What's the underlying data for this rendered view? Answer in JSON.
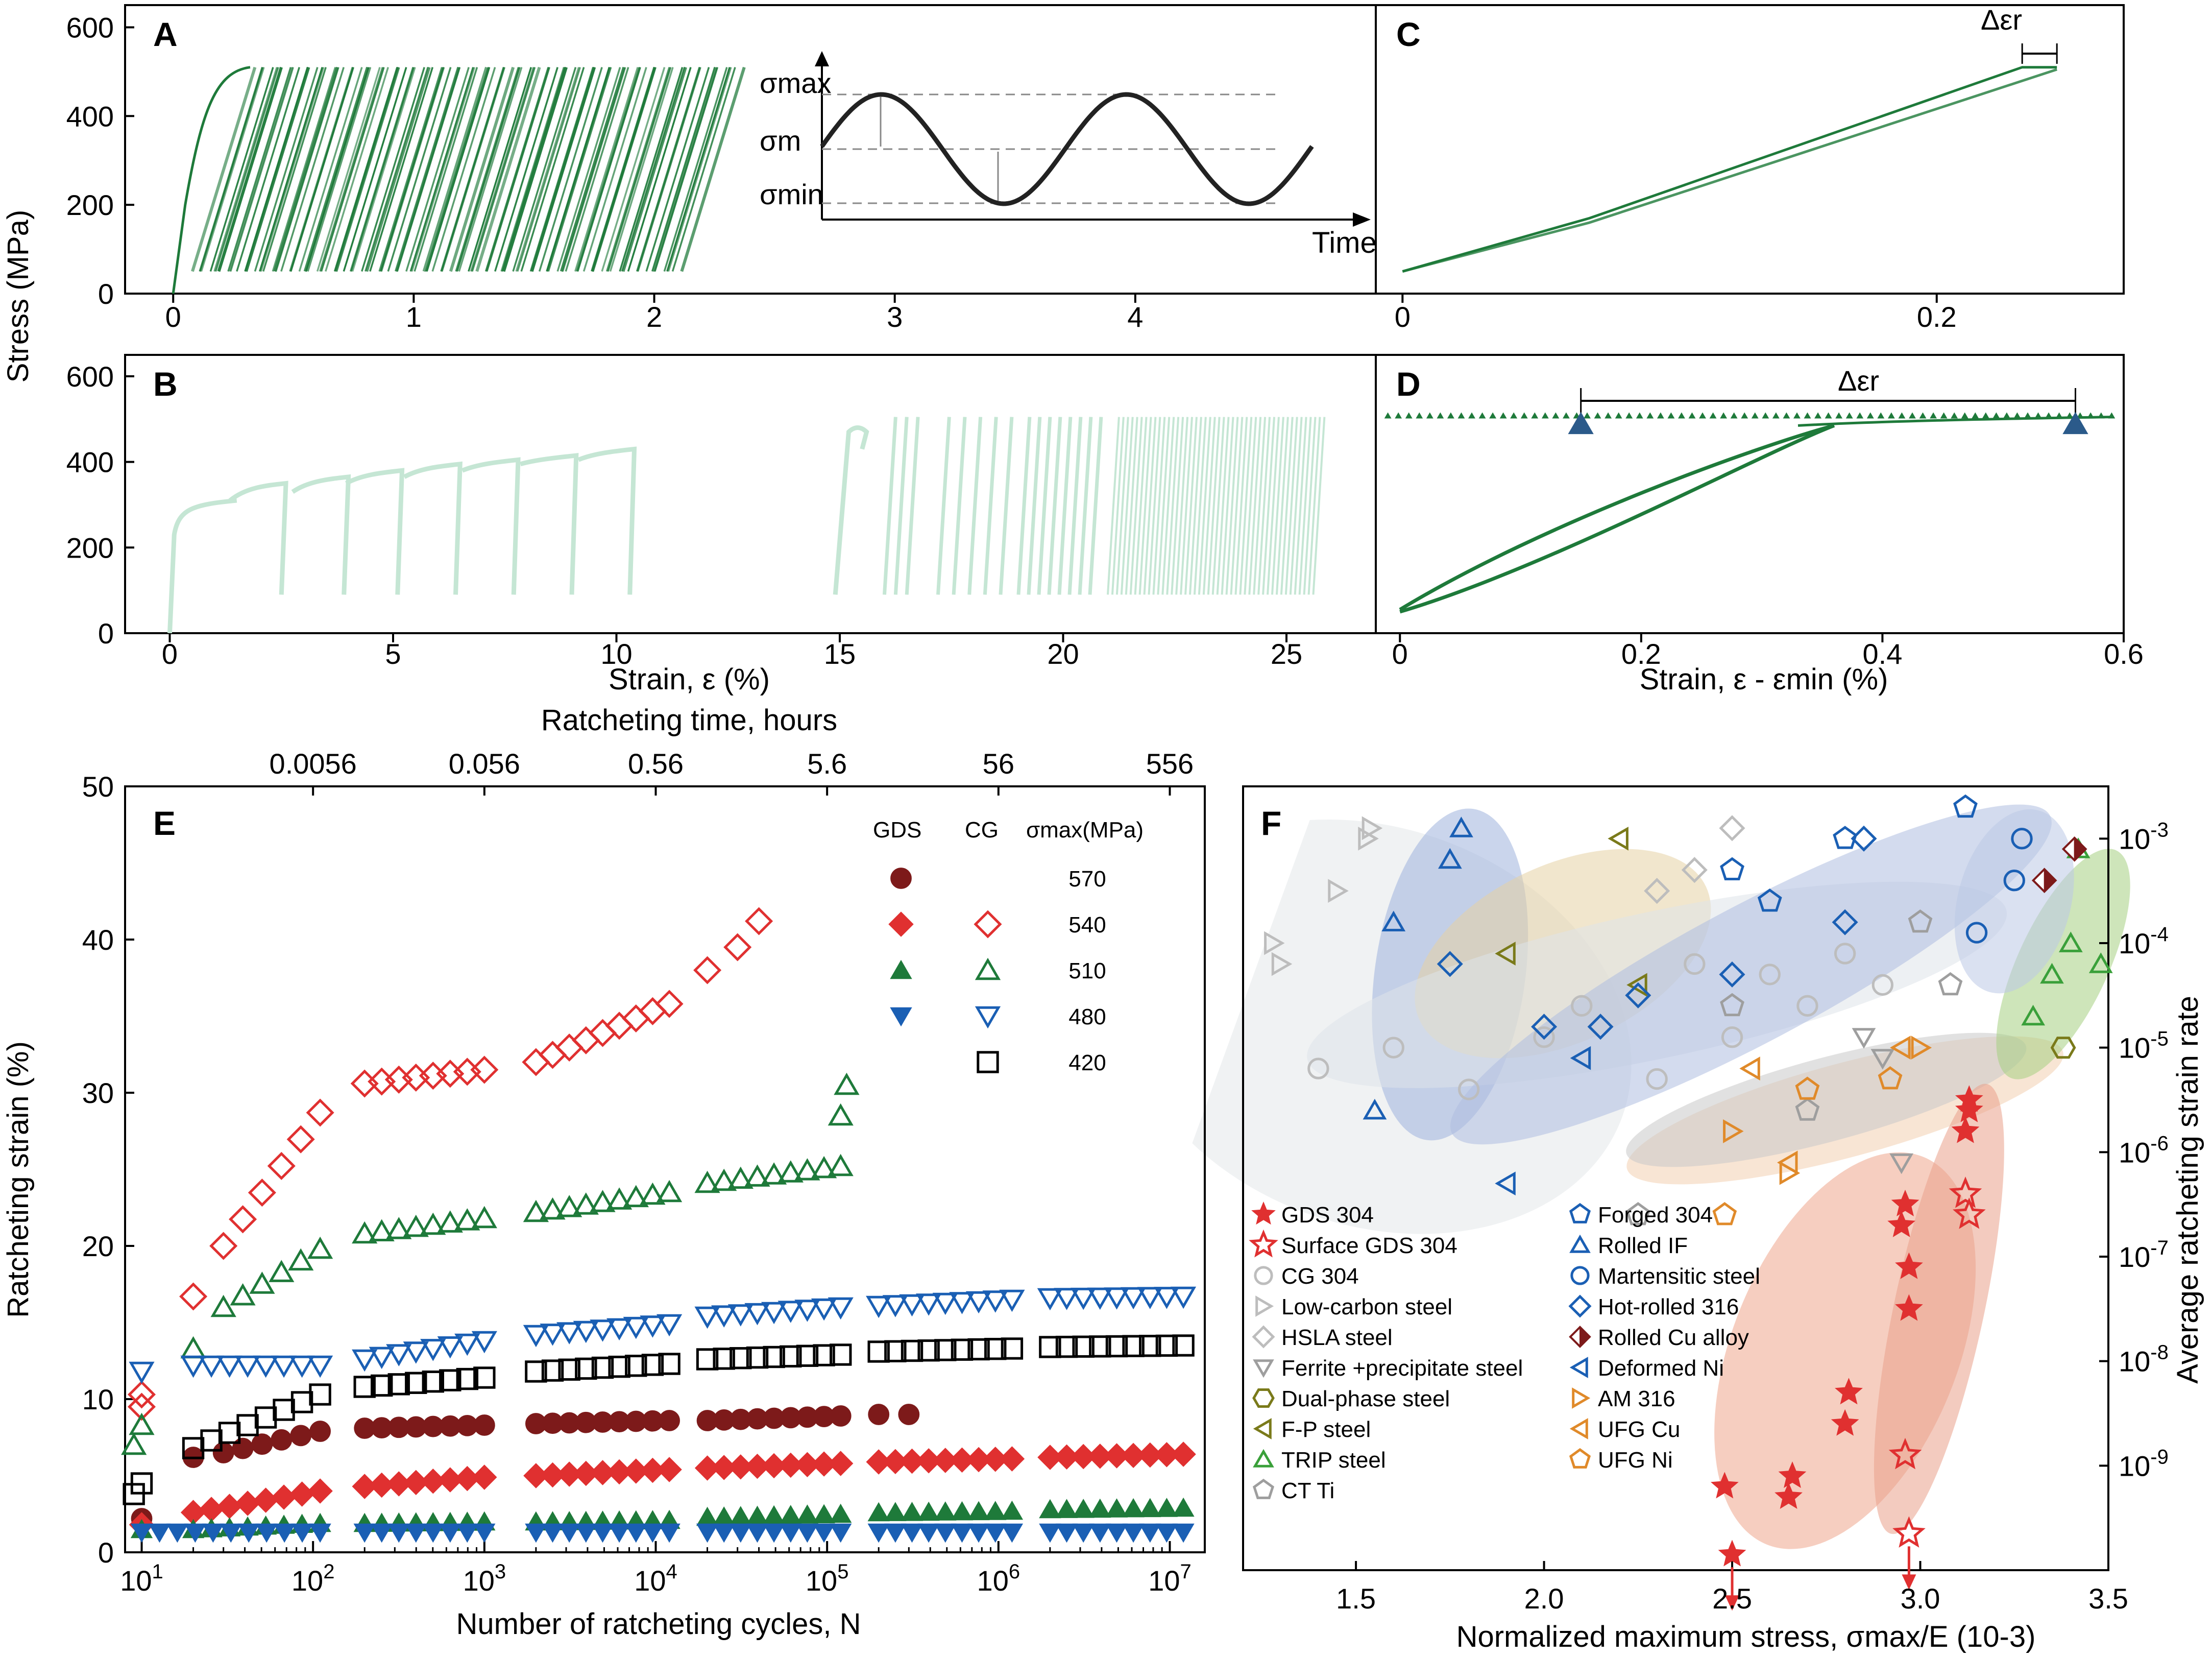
{
  "colors": {
    "green": "#1e7a3a",
    "pale_green": "#c5e6d4",
    "red": "#e03030",
    "dark_red": "#7d1a1a",
    "blue": "#1a5fb4",
    "black": "#000000",
    "gray": "#b5b5b5",
    "steel_blue": "#2b5a8a"
  },
  "panels": {
    "A": {
      "letter": "A"
    },
    "B": {
      "letter": "B"
    },
    "C": {
      "letter": "C"
    },
    "D": {
      "letter": "D"
    },
    "E": {
      "letter": "E"
    },
    "F": {
      "letter": "F"
    }
  },
  "labels": {
    "stress_axis": "Stress (MPa)",
    "strain_axis": "Strain, ε (%)",
    "strain_min_axis": "Strain, ε - εmin (%)",
    "time_label": "Time",
    "sigma_max": "σmax",
    "sigma_m": "σm",
    "sigma_min": "σmin",
    "delta_er": "Δεr",
    "ratch_time_axis": "Ratcheting time, hours",
    "ratch_strain_axis": "Ratcheting strain (%)",
    "cycles_axis": "Number of ratcheting cycles, N",
    "norm_stress_axis": "Normalized maximum stress, σmax/E (10-3)",
    "avg_rate_axis": "Average ratcheting strain rate",
    "legend_gds": "GDS",
    "legend_cg": "CG",
    "legend_smax": "σmax(MPa)"
  },
  "chart_data": [
    {
      "panel": "A",
      "type": "line",
      "xlabel": "",
      "ylabel": "Stress (MPa)",
      "xlim": [
        -0.2,
        5.0
      ],
      "ylim": [
        0,
        650
      ],
      "xticks": [
        0,
        1,
        2,
        3,
        4
      ],
      "yticks": [
        0,
        200,
        400,
        600
      ],
      "cycle_band": {
        "stress_min": 50,
        "stress_max": 510,
        "strain_start": 0.0,
        "strain_end": 2.35
      },
      "inset": {
        "type": "line",
        "description_labels": [
          "σmax",
          "σm",
          "σmin",
          "Time"
        ]
      }
    },
    {
      "panel": "B",
      "type": "line",
      "xlabel": "Strain, ε (%)",
      "ylabel": "",
      "xlim": [
        -1,
        27
      ],
      "ylim": [
        0,
        650
      ],
      "xticks": [
        0,
        5,
        10,
        15,
        20,
        25
      ],
      "yticks": [
        0,
        200,
        400,
        600
      ],
      "plateau_levels": [
        300,
        320,
        340,
        355,
        370,
        385,
        395,
        405,
        420,
        430
      ]
    },
    {
      "panel": "C",
      "type": "line",
      "xlabel": "",
      "ylabel": "",
      "xlim": [
        -0.01,
        0.27
      ],
      "ylim": [
        0,
        650
      ],
      "xticks": [
        0,
        0.2
      ],
      "annotation": "Δεr"
    },
    {
      "panel": "D",
      "type": "line",
      "xlabel": "Strain, ε - εmin (%)",
      "ylabel": "",
      "xlim": [
        -0.02,
        0.6
      ],
      "ylim": [
        0,
        650
      ],
      "xticks": [
        0,
        0.2,
        0.4,
        0.6
      ],
      "annotation": "Δεr",
      "ratchet_range": [
        0.15,
        0.56
      ]
    },
    {
      "panel": "E",
      "type": "scatter",
      "xlabel": "Number of ratcheting cycles, N",
      "ylabel": "Ratcheting strain (%)",
      "xscale": "log",
      "xlim": [
        8,
        16000000
      ],
      "ylim": [
        0,
        50
      ],
      "xtick_labels": [
        "10^1",
        "10^2",
        "10^3",
        "10^4",
        "10^5",
        "10^6",
        "10^7"
      ],
      "yticks": [
        0,
        10,
        20,
        30,
        40,
        50
      ],
      "top_axis": {
        "label": "Ratcheting time, hours",
        "ticks": [
          "0.0056",
          "0.056",
          "0.56",
          "5.6",
          "56",
          "556"
        ]
      },
      "series": [
        {
          "name": "570",
          "group": "GDS",
          "marker": "circle",
          "color": "#7d1a1a",
          "filled": true,
          "segments": [
            [
              30,
              6.5,
              110,
              7.9
            ],
            [
              200,
              8.1,
              1000,
              8.3
            ],
            [
              2000,
              8.4,
              12000,
              8.6
            ],
            [
              20000,
              8.6,
              120000,
              8.9
            ]
          ],
          "x": [
            10,
            20,
            200000,
            300000
          ],
          "y": [
            2.2,
            6.2,
            9.0,
            9.0
          ]
        },
        {
          "name": "540",
          "group": "GDS",
          "marker": "diamond",
          "color": "#e03030",
          "filled": true,
          "segments": [
            [
              20,
              2.6,
              110,
              4.0
            ],
            [
              200,
              4.3,
              1000,
              4.9
            ],
            [
              2000,
              5.0,
              12000,
              5.4
            ],
            [
              20000,
              5.5,
              120000,
              5.8
            ],
            [
              200000,
              5.9,
              1200000,
              6.1
            ],
            [
              2000000,
              6.2,
              12000000,
              6.4
            ]
          ],
          "x": [
            10
          ],
          "y": [
            1.8
          ]
        },
        {
          "name": "510",
          "group": "GDS",
          "marker": "triangle-up",
          "color": "#1e7a3a",
          "filled": true,
          "segments": [
            [
              20,
              1.5,
              110,
              1.9
            ],
            [
              200,
              1.9,
              1000,
              2.0
            ],
            [
              2000,
              2.0,
              12000,
              2.1
            ],
            [
              20000,
              2.3,
              120000,
              2.5
            ],
            [
              200000,
              2.6,
              1200000,
              2.7
            ],
            [
              2000000,
              2.8,
              12000000,
              2.9
            ]
          ],
          "x": [
            10
          ],
          "y": [
            1.5
          ]
        },
        {
          "name": "480",
          "group": "GDS",
          "marker": "triangle-down",
          "color": "#1a5fb4",
          "filled": true,
          "segments": [
            [
              10,
              1.3,
              110,
              1.3
            ],
            [
              200,
              1.3,
              1000,
              1.3
            ],
            [
              2000,
              1.3,
              12000,
              1.3
            ],
            [
              20000,
              1.3,
              120000,
              1.3
            ],
            [
              200000,
              1.3,
              1200000,
              1.3
            ],
            [
              2000000,
              1.3,
              12000000,
              1.3
            ]
          ],
          "x": [],
          "y": []
        },
        {
          "name": "540",
          "group": "CG",
          "marker": "diamond",
          "color": "#e03030",
          "filled": false,
          "segments": [
            [
              30,
              20,
              110,
              28.7
            ],
            [
              200,
              30.6,
              1000,
              31.5
            ],
            [
              2000,
              32,
              12000,
              35.8
            ]
          ],
          "x": [
            10,
            10,
            20,
            20000,
            30000,
            40000
          ],
          "y": [
            9.5,
            10.3,
            16.7,
            38,
            39.5,
            41.2
          ]
        },
        {
          "name": "510",
          "group": "CG",
          "marker": "triangle-up",
          "color": "#1e7a3a",
          "filled": false,
          "segments": [
            [
              30,
              16,
              110,
              19.8
            ],
            [
              200,
              20.8,
              1000,
              21.8
            ],
            [
              2000,
              22.2,
              12000,
              23.5
            ],
            [
              20000,
              24.1,
              120000,
              25.2
            ]
          ],
          "x": [
            9,
            10,
            20,
            120000,
            130000
          ],
          "y": [
            7.0,
            8.3,
            13.3,
            28.5,
            30.5
          ]
        },
        {
          "name": "480",
          "group": "CG",
          "marker": "triangle-down",
          "color": "#1a5fb4",
          "filled": false,
          "segments": [
            [
              20,
              12.2,
              110,
              12.2
            ],
            [
              200,
              12.6,
              1000,
              13.8
            ],
            [
              2000,
              14.2,
              12000,
              14.9
            ],
            [
              20000,
              15.4,
              120000,
              16.0
            ],
            [
              200000,
              16.1,
              1200000,
              16.5
            ],
            [
              2000000,
              16.6,
              12000000,
              16.7
            ]
          ],
          "x": [
            10
          ],
          "y": [
            11.8
          ]
        },
        {
          "name": "420",
          "group": "CG",
          "marker": "square",
          "color": "#000000",
          "filled": false,
          "segments": [
            [
              20,
              6.8,
              110,
              10.3
            ],
            [
              200,
              10.8,
              1000,
              11.4
            ],
            [
              2000,
              11.8,
              12000,
              12.3
            ],
            [
              20000,
              12.6,
              120000,
              12.9
            ],
            [
              200000,
              13.1,
              1200000,
              13.3
            ],
            [
              2000000,
              13.4,
              12000000,
              13.5
            ]
          ],
          "x": [
            9,
            10
          ],
          "y": [
            3.8,
            4.5
          ]
        }
      ],
      "legend": {
        "columns": [
          "GDS",
          "CG",
          "σmax(MPa)"
        ],
        "rows": [
          "570",
          "540",
          "510",
          "480",
          "420"
        ]
      }
    },
    {
      "panel": "F",
      "type": "scatter",
      "xlabel": "Normalized maximum stress, σmax/E (10-3)",
      "ylabel": "Average ratcheting strain rate",
      "xlim": [
        1.2,
        3.5
      ],
      "ylim_log10": [
        -10,
        -2.5
      ],
      "xticks": [
        1.5,
        2.0,
        2.5,
        3.0,
        3.5
      ],
      "ytick_labels": [
        "10^-9",
        "10^-8",
        "10^-7",
        "10^-6",
        "10^-5",
        "10^-4",
        "10^-3"
      ],
      "series": [
        {
          "name": "GDS 304",
          "marker": "star",
          "color": "#e03030",
          "filled": true,
          "x": [
            2.48,
            2.5,
            2.65,
            2.66,
            2.8,
            2.81,
            2.95,
            2.96,
            2.97,
            2.97,
            3.12,
            3.13,
            3.13
          ],
          "y": [
            -9.2,
            -9.85,
            -9.3,
            -9.1,
            -8.6,
            -8.3,
            -6.7,
            -6.5,
            -7.1,
            -7.5,
            -5.8,
            -5.6,
            -5.5
          ]
        },
        {
          "name": "Surface GDS 304",
          "marker": "star",
          "color": "#e03030",
          "filled": false,
          "x": [
            2.96,
            2.97,
            3.12,
            3.13
          ],
          "y": [
            -8.9,
            -9.65,
            -6.4,
            -6.6
          ]
        },
        {
          "name": "CG 304",
          "marker": "circle",
          "color": "#bdbdbd",
          "filled": false,
          "x": [
            1.4,
            1.6,
            1.8,
            2.0,
            2.1,
            2.3,
            2.4,
            2.5,
            2.6,
            2.7,
            2.8,
            2.9
          ],
          "y": [
            -5.2,
            -5.0,
            -5.4,
            -4.9,
            -4.6,
            -5.3,
            -4.2,
            -4.9,
            -4.3,
            -4.6,
            -4.1,
            -4.4
          ]
        },
        {
          "name": "Low-carbon steel",
          "marker": "triangle-right",
          "color": "#bdbdbd",
          "filled": false,
          "x": [
            1.28,
            1.3,
            1.45,
            1.53,
            1.54
          ],
          "y": [
            -4.0,
            -4.2,
            -3.5,
            -3.0,
            -2.9
          ]
        },
        {
          "name": "HSLA steel",
          "marker": "diamond",
          "color": "#bdbdbd",
          "filled": false,
          "x": [
            2.3,
            2.4,
            2.5
          ],
          "y": [
            -3.5,
            -3.3,
            -2.9
          ]
        },
        {
          "name": "Ferrite +precipitate steel",
          "marker": "triangle-down",
          "color": "#9e9e9e",
          "filled": false,
          "x": [
            2.85,
            2.9,
            2.95
          ],
          "y": [
            -4.9,
            -5.1,
            -6.1
          ]
        },
        {
          "name": "Dual-phase steel",
          "marker": "hexagon",
          "color": "#7a7a1a",
          "filled": false,
          "x": [
            3.38
          ],
          "y": [
            -5.0
          ]
        },
        {
          "name": "F-P steel",
          "marker": "triangle-left",
          "color": "#7a7a1a",
          "filled": false,
          "x": [
            1.9,
            2.2,
            2.25
          ],
          "y": [
            -4.1,
            -3.0,
            -4.4
          ]
        },
        {
          "name": "TRIP steel",
          "marker": "triangle-up",
          "color": "#3aa03a",
          "filled": false,
          "x": [
            3.3,
            3.35,
            3.4,
            3.42,
            3.48
          ],
          "y": [
            -4.7,
            -4.3,
            -4.0,
            -3.1,
            -4.2
          ]
        },
        {
          "name": "CT Ti",
          "marker": "pentagon",
          "color": "#9e9e9e",
          "filled": false,
          "x": [
            2.25,
            2.5,
            2.7,
            3.0,
            3.08
          ],
          "y": [
            -6.6,
            -4.6,
            -5.6,
            -3.8,
            -4.4
          ]
        },
        {
          "name": "Forged 304",
          "marker": "pentagon",
          "color": "#1a5fb4",
          "filled": false,
          "x": [
            2.5,
            2.6,
            2.8,
            3.12
          ],
          "y": [
            -3.3,
            -3.6,
            -3.0,
            -2.7
          ]
        },
        {
          "name": "Rolled IF",
          "marker": "triangle-up",
          "color": "#1a5fb4",
          "filled": false,
          "x": [
            1.55,
            1.6,
            1.75,
            1.78
          ],
          "y": [
            -5.6,
            -3.8,
            -3.2,
            -2.9
          ]
        },
        {
          "name": "Martensitic steel",
          "marker": "circle",
          "color": "#1a5fb4",
          "filled": false,
          "x": [
            3.15,
            3.25,
            3.27
          ],
          "y": [
            -3.9,
            -3.4,
            -3.0
          ]
        },
        {
          "name": "Hot-rolled 316",
          "marker": "diamond",
          "color": "#1a5fb4",
          "filled": false,
          "x": [
            1.75,
            2.0,
            2.15,
            2.25,
            2.5,
            2.8,
            2.85
          ],
          "y": [
            -4.2,
            -4.8,
            -4.8,
            -4.5,
            -4.3,
            -3.8,
            -3.0
          ]
        },
        {
          "name": "Rolled Cu alloy",
          "marker": "diamond-half",
          "color": "#7d1a1a",
          "filled": true,
          "x": [
            3.33,
            3.41
          ],
          "y": [
            -3.4,
            -3.1
          ]
        },
        {
          "name": "Deformed Ni",
          "marker": "triangle-left",
          "color": "#1a5fb4",
          "filled": false,
          "x": [
            1.9,
            2.1
          ],
          "y": [
            -6.3,
            -5.1
          ]
        },
        {
          "name": "AM 316",
          "marker": "triangle-right",
          "color": "#e08a2a",
          "filled": false,
          "x": [
            2.5,
            2.65,
            3.0
          ],
          "y": [
            -5.8,
            -6.2,
            -5.0
          ]
        },
        {
          "name": "UFG Cu",
          "marker": "triangle-left",
          "color": "#e08a2a",
          "filled": false,
          "x": [
            2.55,
            2.65,
            2.95
          ],
          "y": [
            -5.2,
            -6.1,
            -5.0
          ]
        },
        {
          "name": "UFG Ni",
          "marker": "pentagon",
          "color": "#e08a2a",
          "filled": false,
          "x": [
            2.48,
            2.7,
            2.92
          ],
          "y": [
            -6.6,
            -5.4,
            -5.3
          ]
        }
      ]
    }
  ]
}
